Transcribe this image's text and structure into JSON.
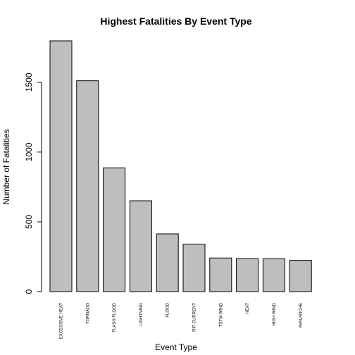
{
  "chart_data": {
    "type": "bar",
    "title": "Highest Fatalities By Event Type",
    "xlabel": "Event Type",
    "ylabel": "Number of Fatalities",
    "categories": [
      "EXCESSIVE HEAT",
      "TORNADO",
      "FLASH FLOOD",
      "LIGHTNING",
      "FLOOD",
      "RIP CURRENT",
      "TSTM WIND",
      "HEAT",
      "HIGH WIND",
      "AVALANCHE"
    ],
    "values": [
      1797,
      1511,
      887,
      651,
      414,
      340,
      241,
      237,
      235,
      224
    ],
    "ylim": [
      0,
      1797
    ],
    "yticks": [
      0,
      500,
      1000,
      1500
    ],
    "grid": false,
    "bar_color": "#bebebe",
    "bar_edge_color": "#000000"
  }
}
